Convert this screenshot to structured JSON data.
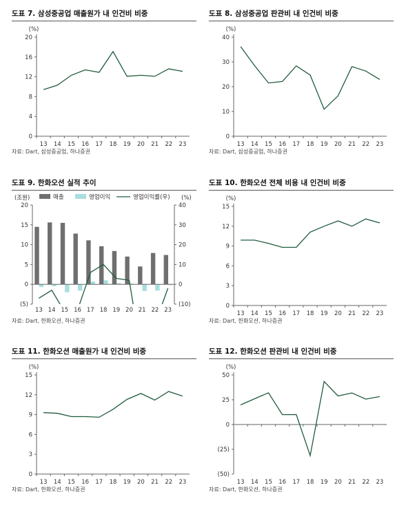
{
  "charts": [
    {
      "title": "도표 7. 삼성중공업 매출원가 내 인건비 비중",
      "source": "자료: Dart, 삼성중공업, 하나증권",
      "chart_data": {
        "type": "line",
        "unit": "(%)",
        "categories": [
          "13",
          "14",
          "15",
          "16",
          "17",
          "18",
          "19",
          "20",
          "21",
          "22",
          "23"
        ],
        "series": [
          {
            "values": [
              9.4,
              10.3,
              12.3,
              13.4,
              12.9,
              17.1,
              12.1,
              12.3,
              12.1,
              13.6,
              13.1
            ],
            "color": "#1f5b3c"
          }
        ],
        "ylim": [
          0,
          20
        ],
        "yticks": [
          0,
          4,
          8,
          12,
          16,
          20
        ]
      }
    },
    {
      "title": "도표 8. 삼성중공업 판관비 내 인건비 비중",
      "source": "자료: Dart, 삼성중공업, 하나증권",
      "chart_data": {
        "type": "line",
        "unit": "(%)",
        "categories": [
          "13",
          "14",
          "15",
          "16",
          "17",
          "18",
          "19",
          "20",
          "21",
          "22",
          "23"
        ],
        "series": [
          {
            "values": [
              36.2,
              28.5,
              21.5,
              22.1,
              28.4,
              24.7,
              10.9,
              16.3,
              28.1,
              26.3,
              22.9
            ],
            "color": "#1f5b3c"
          }
        ],
        "ylim": [
          0,
          40
        ],
        "yticks": [
          0,
          10,
          20,
          30,
          40
        ]
      }
    },
    {
      "title": "도표 9. 한화오션 실적 추이",
      "source": "자료: Dart, 한화오션, 하나증권",
      "chart_data": {
        "type": "bar+line",
        "unit_left": "(조원)",
        "unit_right": "(%)",
        "categories": [
          "13",
          "14",
          "15",
          "16",
          "17",
          "18",
          "19",
          "20",
          "21",
          "22",
          "23"
        ],
        "legend": [
          "매출",
          "영업이익",
          "영업이익률(우)"
        ],
        "bar_series": [
          {
            "name": "매출",
            "values": [
              14.5,
              15.6,
              15.5,
              12.8,
              11.1,
              9.6,
              8.4,
              7.0,
              4.5,
              7.9,
              7.4
            ],
            "color": "#6f6f6f"
          },
          {
            "name": "영업이익",
            "values": [
              -0.7,
              -0.5,
              -2.0,
              -1.6,
              0.7,
              1.0,
              0.3,
              0.2,
              -1.7,
              -1.6,
              -0.2
            ],
            "color": "#a8dede"
          }
        ],
        "line_series": [
          {
            "name": "영업이익률(우)",
            "values": [
              -7,
              -3,
              -14,
              -13,
              6,
              10,
              3,
              2,
              -38,
              -20,
              -2
            ],
            "color": "#1f5b3c"
          }
        ],
        "ylim_left": [
          -5,
          20
        ],
        "yticks_left": [
          -5,
          0,
          5,
          10,
          15,
          20
        ],
        "ytick_labels_left": [
          "(5)",
          "0",
          "5",
          "10",
          "15",
          "20"
        ],
        "ylim_right": [
          -10,
          40
        ],
        "yticks_right": [
          -10,
          0,
          10,
          20,
          30,
          40
        ],
        "ytick_labels_right": [
          "(10)",
          "0",
          "10",
          "20",
          "30",
          "40"
        ]
      }
    },
    {
      "title": "도표 10. 한화오션 전체 비용 내 인건비 비중",
      "source": "자료: Dart, 한화오션, 하나증권",
      "chart_data": {
        "type": "line",
        "unit": "(%)",
        "categories": [
          "13",
          "14",
          "15",
          "16",
          "17",
          "18",
          "19",
          "20",
          "21",
          "22",
          "23"
        ],
        "series": [
          {
            "values": [
              9.9,
              9.9,
              9.4,
              8.8,
              8.8,
              11.1,
              12.0,
              12.8,
              12.0,
              13.1,
              12.5
            ],
            "color": "#1f5b3c"
          }
        ],
        "ylim": [
          0,
          15
        ],
        "yticks": [
          0,
          3,
          6,
          9,
          12,
          15
        ]
      }
    },
    {
      "title": "도표 11. 한화오션 매출원가 내 인건비 비중",
      "source": "자료: Dart, 한화오션, 하나증권",
      "chart_data": {
        "type": "line",
        "unit": "(%)",
        "categories": [
          "13",
          "14",
          "15",
          "16",
          "17",
          "18",
          "19",
          "20",
          "21",
          "22",
          "23"
        ],
        "series": [
          {
            "values": [
              9.3,
              9.2,
              8.7,
              8.7,
              8.6,
              9.8,
              11.3,
              12.2,
              11.2,
              12.5,
              11.8
            ],
            "color": "#1f5b3c"
          }
        ],
        "ylim": [
          0,
          15
        ],
        "yticks": [
          0,
          3,
          6,
          9,
          12,
          15
        ]
      }
    },
    {
      "title": "도표 12. 한화오션 판관비 내 인건비 비중",
      "source": "자료: Dart, 한화오션, 하나증권",
      "chart_data": {
        "type": "line",
        "unit": "(%)",
        "categories": [
          "13",
          "14",
          "15",
          "16",
          "17",
          "18",
          "19",
          "20",
          "21",
          "22",
          "23"
        ],
        "series": [
          {
            "values": [
              19.8,
              26.0,
              32.0,
              10.0,
              10.1,
              -31.4,
              43.4,
              28.8,
              31.8,
              25.6,
              28.2
            ],
            "color": "#1f5b3c"
          }
        ],
        "ylim": [
          -50,
          50
        ],
        "yticks": [
          -50,
          -25,
          0,
          25,
          50
        ],
        "ytick_labels": [
          "(50)",
          "(25)",
          "0",
          "25",
          "50"
        ]
      }
    }
  ]
}
